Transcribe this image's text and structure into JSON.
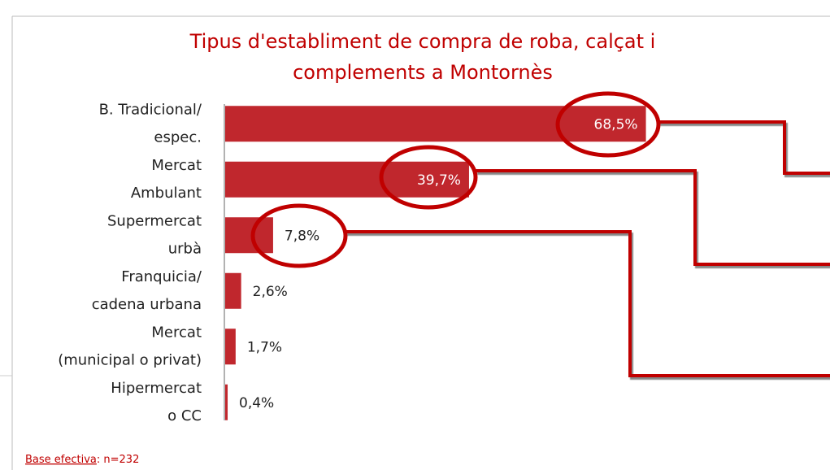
{
  "chart_data": {
    "type": "bar",
    "orientation": "horizontal",
    "title": [
      "Tipus d'establiment de compra de roba, calçat i",
      "complements a Montornès"
    ],
    "categories": [
      [
        "B. Tradicional/",
        "espec."
      ],
      [
        "Mercat",
        "Ambulant"
      ],
      [
        "Supermercat",
        "urbà"
      ],
      [
        "Franquicia/",
        "cadena urbana"
      ],
      [
        "Mercat",
        "(municipal o privat)"
      ],
      [
        "Hipermercat",
        "o CC"
      ]
    ],
    "values": [
      68.5,
      39.7,
      7.8,
      2.6,
      1.7,
      0.4
    ],
    "value_labels": [
      "68,5%",
      "39,7%",
      "7,8%",
      "2,6%",
      "1,7%",
      "0,4%"
    ],
    "color": "#c0272d",
    "title_color": "#c00000",
    "xlim": [
      0,
      90
    ],
    "footer": {
      "label": "Base efectiva",
      "text": ": n=232"
    }
  }
}
